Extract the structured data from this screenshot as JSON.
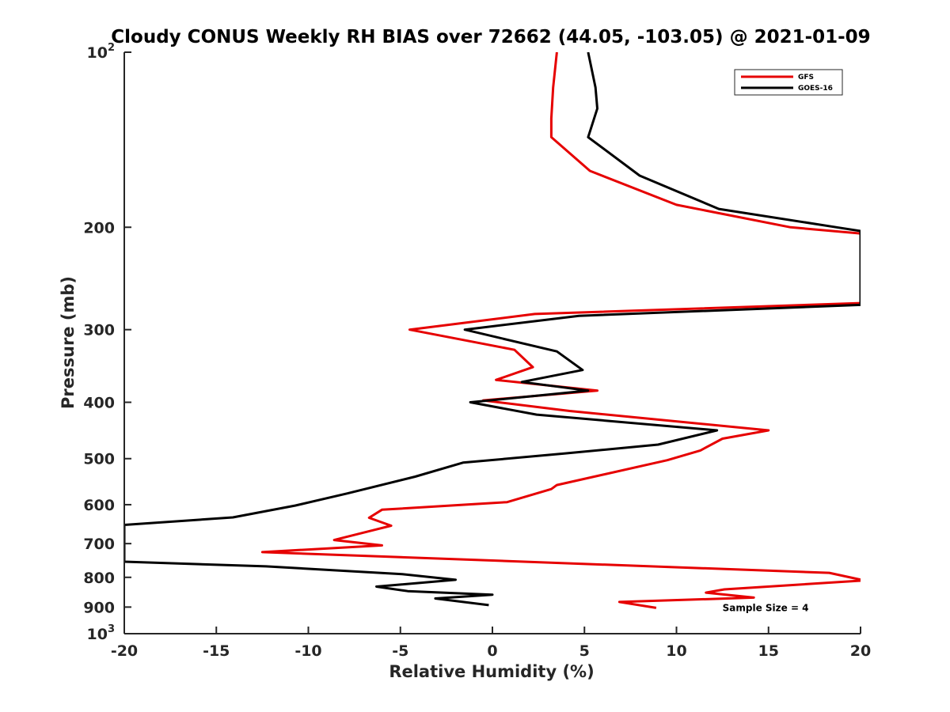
{
  "chart_data": {
    "type": "line",
    "title": "Cloudy CONUS Weekly RH BIAS over 72662 (44.05, -103.05) @ 2021-01-09",
    "xlabel": "Relative Humidity (%)",
    "ylabel": "Pressure (mb)",
    "xlim": [
      -20,
      20
    ],
    "ylim": [
      100,
      1000
    ],
    "y_scale": "log",
    "y_reversed": true,
    "grid": false,
    "legend_position": "top-right",
    "x_ticks": [
      -20,
      -15,
      -10,
      -5,
      0,
      5,
      10,
      15,
      20
    ],
    "x_tick_labels": [
      "-20",
      "-15",
      "-10",
      "-5",
      "0",
      "5",
      "10",
      "15",
      "20"
    ],
    "y_ticks": [
      {
        "value": 100,
        "base": "10",
        "exp": "2"
      },
      {
        "value": 200,
        "label": "200"
      },
      {
        "value": 300,
        "label": "300"
      },
      {
        "value": 400,
        "label": "400"
      },
      {
        "value": 500,
        "label": "500"
      },
      {
        "value": 600,
        "label": "600"
      },
      {
        "value": 700,
        "label": "700"
      },
      {
        "value": 800,
        "label": "800"
      },
      {
        "value": 900,
        "label": "900"
      },
      {
        "value": 1000,
        "base": "10",
        "exp": "3"
      }
    ],
    "series": [
      {
        "name": "GFS",
        "color": "#e60000",
        "points": [
          [
            3.5,
            100
          ],
          [
            3.3,
            115
          ],
          [
            3.2,
            130
          ],
          [
            3.2,
            140
          ],
          [
            5.3,
            160
          ],
          [
            10.0,
            183
          ],
          [
            16.2,
            200
          ],
          [
            20.0,
            205
          ],
          [
            20.0,
            270
          ],
          [
            2.3,
            282
          ],
          [
            -4.5,
            300
          ],
          [
            1.2,
            325
          ],
          [
            2.2,
            348
          ],
          [
            0.2,
            366
          ],
          [
            5.7,
            382
          ],
          [
            -0.5,
            397
          ],
          [
            4.2,
            414
          ],
          [
            15.0,
            447
          ],
          [
            12.5,
            462
          ],
          [
            11.3,
            484
          ],
          [
            9.5,
            503
          ],
          [
            3.5,
            555
          ],
          [
            3.2,
            564
          ],
          [
            0.8,
            594
          ],
          [
            -6.0,
            612
          ],
          [
            -6.7,
            632
          ],
          [
            -5.5,
            652
          ],
          [
            -6.5,
            664
          ],
          [
            -8.6,
            690
          ],
          [
            -6.0,
            705
          ],
          [
            -12.5,
            724
          ],
          [
            18.3,
            786
          ],
          [
            20.2,
            810
          ],
          [
            12.6,
            839
          ],
          [
            11.6,
            850
          ],
          [
            14.2,
            867
          ],
          [
            6.9,
            882
          ],
          [
            8.9,
            903
          ]
        ]
      },
      {
        "name": "GOES-16",
        "color": "#000000",
        "points": [
          [
            5.2,
            100
          ],
          [
            5.6,
            115
          ],
          [
            5.7,
            125
          ],
          [
            5.2,
            140
          ],
          [
            8.0,
            163
          ],
          [
            12.3,
            186
          ],
          [
            18.7,
            200
          ],
          [
            20.0,
            203
          ],
          [
            20.0,
            272
          ],
          [
            4.7,
            284
          ],
          [
            -1.5,
            300
          ],
          [
            3.5,
            327
          ],
          [
            4.9,
            352
          ],
          [
            1.6,
            369
          ],
          [
            5.2,
            382
          ],
          [
            -1.2,
            400
          ],
          [
            2.4,
            420
          ],
          [
            12.2,
            447
          ],
          [
            9.0,
            473
          ],
          [
            3.9,
            490
          ],
          [
            -1.6,
            508
          ],
          [
            -4.2,
            537
          ],
          [
            -7.9,
            574
          ],
          [
            -10.7,
            602
          ],
          [
            -14.1,
            631
          ],
          [
            -20.0,
            650
          ],
          [
            -20.0,
            752
          ],
          [
            -12.3,
            766
          ],
          [
            -4.9,
            790
          ],
          [
            -2.0,
            808
          ],
          [
            -6.3,
            830
          ],
          [
            -4.6,
            845
          ],
          [
            0.0,
            857
          ],
          [
            -3.1,
            870
          ],
          [
            -0.2,
            893
          ]
        ]
      }
    ],
    "annotations": [
      {
        "text": "Sample Size = 4",
        "x": 12.5,
        "y": 900
      }
    ]
  }
}
